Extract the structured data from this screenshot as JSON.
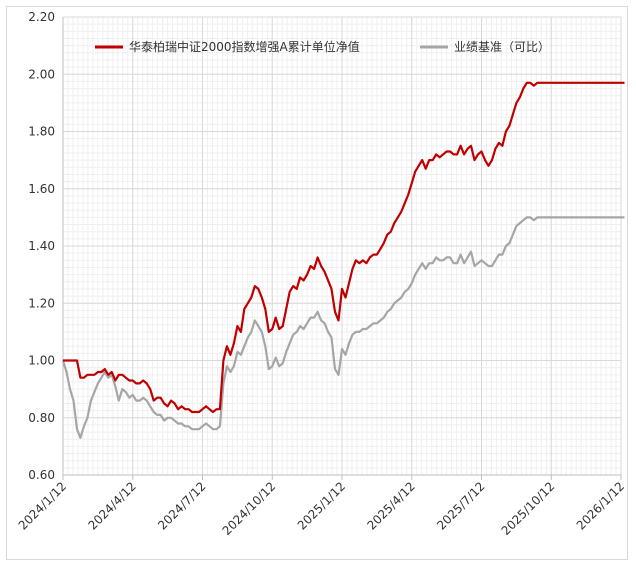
{
  "chart_data": {
    "type": "line",
    "y_ticks": [
      "0.60",
      "0.80",
      "1.00",
      "1.20",
      "1.40",
      "1.60",
      "1.80",
      "2.00",
      "2.20"
    ],
    "ylim": [
      0.6,
      2.2
    ],
    "x_ticks": [
      "2024/1/12",
      "2024/4/12",
      "2024/7/12",
      "2024/10/12",
      "2025/1/12",
      "2025/4/12",
      "2025/7/12",
      "2025/10/12",
      "2026/1/12"
    ],
    "grid": true,
    "legend_position": "top",
    "series": [
      {
        "name": "华泰柏瑞中证2000指数增强A累计单位净值",
        "color": "#c00000",
        "x": [
          0,
          0.05,
          0.1,
          0.15,
          0.2,
          0.25,
          0.3,
          0.35,
          0.4,
          0.45,
          0.5,
          0.55,
          0.6,
          0.65,
          0.7,
          0.75,
          0.8,
          0.85,
          0.9,
          0.95,
          1.0,
          1.05,
          1.1,
          1.15,
          1.2,
          1.25,
          1.3,
          1.35,
          1.4,
          1.45,
          1.5,
          1.55,
          1.6,
          1.65,
          1.7,
          1.75,
          1.8,
          1.85,
          1.9,
          1.95,
          2.0,
          2.05,
          2.1,
          2.15,
          2.2,
          2.25,
          2.3,
          2.35,
          2.4,
          2.45,
          2.5,
          2.55,
          2.6,
          2.65,
          2.7,
          2.75,
          2.8,
          2.85,
          2.9,
          2.95,
          3.0,
          3.05,
          3.1,
          3.15,
          3.2,
          3.25,
          3.3,
          3.35,
          3.4,
          3.45,
          3.5,
          3.55,
          3.6,
          3.65,
          3.7,
          3.75,
          3.8,
          3.85,
          3.9,
          3.95,
          4.0,
          4.05,
          4.1,
          4.15,
          4.2,
          4.25,
          4.3,
          4.35,
          4.4,
          4.45,
          4.5,
          4.55,
          4.6,
          4.65,
          4.7,
          4.75,
          4.8,
          4.85,
          4.9,
          4.95,
          5.0,
          5.05,
          5.1,
          5.15,
          5.2,
          5.25,
          5.3,
          5.35,
          5.4,
          5.45,
          5.5,
          5.55,
          5.6,
          5.65,
          5.7,
          5.75,
          5.8,
          5.85,
          5.9,
          5.95,
          6.0,
          6.05,
          6.1,
          6.15,
          6.2,
          6.25,
          6.3,
          6.35,
          6.4,
          6.45,
          6.5,
          6.55,
          6.6,
          6.65,
          6.7,
          6.75,
          6.8,
          6.85,
          6.9,
          6.95,
          7.0,
          7.05,
          7.1,
          7.15,
          7.2,
          7.25,
          7.3,
          7.35,
          7.4,
          7.45,
          7.5,
          7.55,
          7.6,
          7.65,
          7.7,
          7.75,
          7.8,
          7.85,
          7.9,
          7.95,
          8.0,
          8.05
        ],
        "values": [
          1.0,
          1.0,
          1.0,
          1.0,
          1.0,
          0.94,
          0.94,
          0.95,
          0.95,
          0.95,
          0.96,
          0.96,
          0.97,
          0.95,
          0.96,
          0.93,
          0.95,
          0.95,
          0.94,
          0.93,
          0.93,
          0.92,
          0.92,
          0.93,
          0.92,
          0.9,
          0.86,
          0.87,
          0.87,
          0.85,
          0.84,
          0.86,
          0.85,
          0.83,
          0.84,
          0.83,
          0.83,
          0.82,
          0.82,
          0.82,
          0.83,
          0.84,
          0.83,
          0.82,
          0.83,
          0.83,
          1.0,
          1.05,
          1.02,
          1.06,
          1.12,
          1.1,
          1.18,
          1.2,
          1.22,
          1.26,
          1.25,
          1.22,
          1.18,
          1.1,
          1.11,
          1.15,
          1.11,
          1.12,
          1.18,
          1.24,
          1.26,
          1.25,
          1.29,
          1.28,
          1.3,
          1.33,
          1.32,
          1.36,
          1.33,
          1.31,
          1.28,
          1.25,
          1.17,
          1.14,
          1.25,
          1.22,
          1.27,
          1.32,
          1.35,
          1.34,
          1.35,
          1.34,
          1.36,
          1.37,
          1.37,
          1.39,
          1.41,
          1.44,
          1.45,
          1.48,
          1.5,
          1.52,
          1.55,
          1.58,
          1.62,
          1.66,
          1.68,
          1.7,
          1.67,
          1.7,
          1.7,
          1.72,
          1.71,
          1.72,
          1.73,
          1.73,
          1.72,
          1.72,
          1.75,
          1.72,
          1.74,
          1.75,
          1.7,
          1.72,
          1.73,
          1.7,
          1.68,
          1.7,
          1.74,
          1.76,
          1.75,
          1.8,
          1.82,
          1.86,
          1.9,
          1.92,
          1.95,
          1.97,
          1.97,
          1.96,
          1.97,
          1.97,
          1.97,
          1.97,
          1.97,
          1.97,
          1.97,
          1.97,
          1.97,
          1.97,
          1.97,
          1.97,
          1.97,
          1.97,
          1.97,
          1.97,
          1.97,
          1.97,
          1.97,
          1.97,
          1.97,
          1.97,
          1.97,
          1.97,
          1.97,
          1.97
        ]
      },
      {
        "name": "业绩基准（可比）",
        "color": "#a6a6a6",
        "x": [
          0,
          0.05,
          0.1,
          0.15,
          0.2,
          0.25,
          0.3,
          0.35,
          0.4,
          0.45,
          0.5,
          0.55,
          0.6,
          0.65,
          0.7,
          0.75,
          0.8,
          0.85,
          0.9,
          0.95,
          1.0,
          1.05,
          1.1,
          1.15,
          1.2,
          1.25,
          1.3,
          1.35,
          1.4,
          1.45,
          1.5,
          1.55,
          1.6,
          1.65,
          1.7,
          1.75,
          1.8,
          1.85,
          1.9,
          1.95,
          2.0,
          2.05,
          2.1,
          2.15,
          2.2,
          2.25,
          2.3,
          2.35,
          2.4,
          2.45,
          2.5,
          2.55,
          2.6,
          2.65,
          2.7,
          2.75,
          2.8,
          2.85,
          2.9,
          2.95,
          3.0,
          3.05,
          3.1,
          3.15,
          3.2,
          3.25,
          3.3,
          3.35,
          3.4,
          3.45,
          3.5,
          3.55,
          3.6,
          3.65,
          3.7,
          3.75,
          3.8,
          3.85,
          3.9,
          3.95,
          4.0,
          4.05,
          4.1,
          4.15,
          4.2,
          4.25,
          4.3,
          4.35,
          4.4,
          4.45,
          4.5,
          4.55,
          4.6,
          4.65,
          4.7,
          4.75,
          4.8,
          4.85,
          4.9,
          4.95,
          5.0,
          5.05,
          5.1,
          5.15,
          5.2,
          5.25,
          5.3,
          5.35,
          5.4,
          5.45,
          5.5,
          5.55,
          5.6,
          5.65,
          5.7,
          5.75,
          5.8,
          5.85,
          5.9,
          5.95,
          6.0,
          6.05,
          6.1,
          6.15,
          6.2,
          6.25,
          6.3,
          6.35,
          6.4,
          6.45,
          6.5,
          6.55,
          6.6,
          6.65,
          6.7,
          6.75,
          6.8,
          6.85,
          6.9,
          6.95,
          7.0,
          7.05,
          7.1,
          7.15,
          7.2,
          7.25,
          7.3,
          7.35,
          7.4,
          7.45,
          7.5,
          7.55,
          7.6,
          7.65,
          7.7,
          7.75,
          7.8,
          7.85,
          7.9,
          7.95,
          8.0,
          8.05
        ],
        "values": [
          1.0,
          0.96,
          0.9,
          0.86,
          0.76,
          0.73,
          0.77,
          0.8,
          0.86,
          0.89,
          0.92,
          0.94,
          0.96,
          0.94,
          0.95,
          0.91,
          0.86,
          0.9,
          0.89,
          0.87,
          0.88,
          0.86,
          0.86,
          0.87,
          0.86,
          0.84,
          0.82,
          0.81,
          0.81,
          0.79,
          0.8,
          0.8,
          0.79,
          0.78,
          0.78,
          0.77,
          0.77,
          0.76,
          0.76,
          0.76,
          0.77,
          0.78,
          0.77,
          0.76,
          0.76,
          0.77,
          0.92,
          0.98,
          0.96,
          0.98,
          1.03,
          1.02,
          1.05,
          1.08,
          1.1,
          1.14,
          1.12,
          1.1,
          1.05,
          0.97,
          0.98,
          1.01,
          0.98,
          0.99,
          1.03,
          1.06,
          1.09,
          1.1,
          1.12,
          1.11,
          1.13,
          1.15,
          1.15,
          1.17,
          1.14,
          1.13,
          1.1,
          1.08,
          0.97,
          0.95,
          1.04,
          1.02,
          1.06,
          1.09,
          1.1,
          1.1,
          1.11,
          1.11,
          1.12,
          1.13,
          1.13,
          1.14,
          1.15,
          1.17,
          1.18,
          1.2,
          1.21,
          1.22,
          1.24,
          1.25,
          1.27,
          1.3,
          1.32,
          1.34,
          1.32,
          1.34,
          1.34,
          1.36,
          1.35,
          1.35,
          1.36,
          1.36,
          1.34,
          1.34,
          1.37,
          1.34,
          1.36,
          1.38,
          1.33,
          1.34,
          1.35,
          1.34,
          1.33,
          1.33,
          1.35,
          1.37,
          1.37,
          1.4,
          1.41,
          1.44,
          1.47,
          1.48,
          1.49,
          1.5,
          1.5,
          1.49,
          1.5,
          1.5,
          1.5,
          1.5,
          1.5,
          1.5,
          1.5,
          1.5,
          1.5,
          1.5,
          1.5,
          1.5,
          1.5,
          1.5,
          1.5,
          1.5,
          1.5,
          1.5,
          1.5,
          1.5,
          1.5,
          1.5,
          1.5,
          1.5,
          1.5,
          1.5
        ]
      }
    ]
  }
}
